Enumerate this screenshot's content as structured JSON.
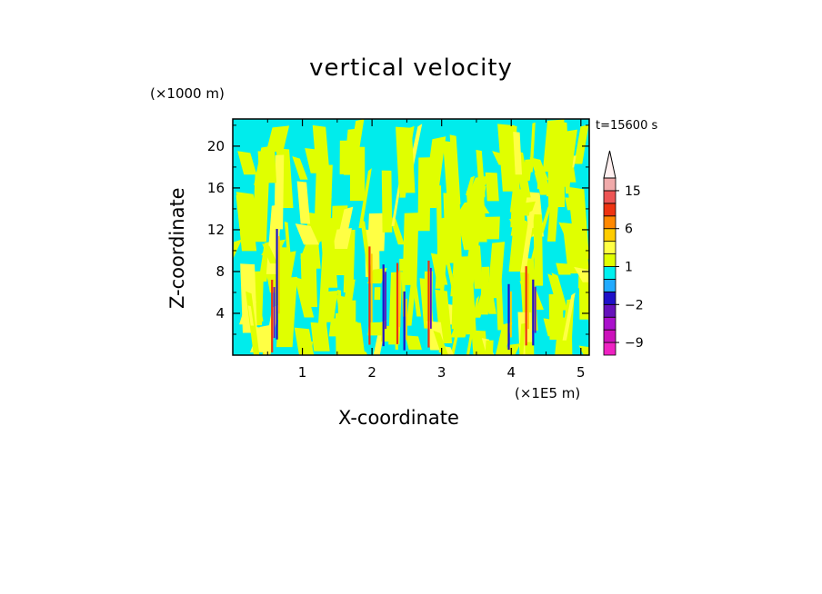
{
  "chart_data": {
    "type": "heatmap",
    "title": "vertical velocity",
    "xlabel": "X-coordinate",
    "ylabel": "Z-coordinate",
    "x_unit_label": "(×1E5 m)",
    "y_unit_label": "(×1000 m)",
    "time_label": "t=15600 s",
    "xlim": [
      0,
      5.12
    ],
    "ylim": [
      0,
      22.6
    ],
    "x_ticks": [
      1,
      2,
      3,
      4,
      5
    ],
    "x_tick_labels": [
      "1",
      "2",
      "3",
      "4",
      "5"
    ],
    "y_ticks": [
      4,
      8,
      12,
      16,
      20
    ],
    "y_tick_labels": [
      "4",
      "8",
      "12",
      "16",
      "20"
    ],
    "colorbar": {
      "levels": [
        -12,
        -9,
        -6,
        -4,
        -2,
        -1,
        0,
        1,
        2,
        4,
        6,
        9,
        12,
        15,
        20
      ],
      "colors": [
        "#ee22c2",
        "#cc11bb",
        "#aa11cc",
        "#6611bb",
        "#1f11c8",
        "#22aaff",
        "#00f0f0",
        "#e0ff00",
        "#ffff44",
        "#ffcc00",
        "#ff8800",
        "#ee3311",
        "#ee5555",
        "#f0aaaa",
        "#ffffff"
      ],
      "label_values": [
        15,
        6,
        1,
        -2,
        -9
      ],
      "labels": [
        "15",
        "6",
        "1",
        "−2",
        "−9"
      ],
      "extend": "max"
    },
    "field_description_note": null
  }
}
